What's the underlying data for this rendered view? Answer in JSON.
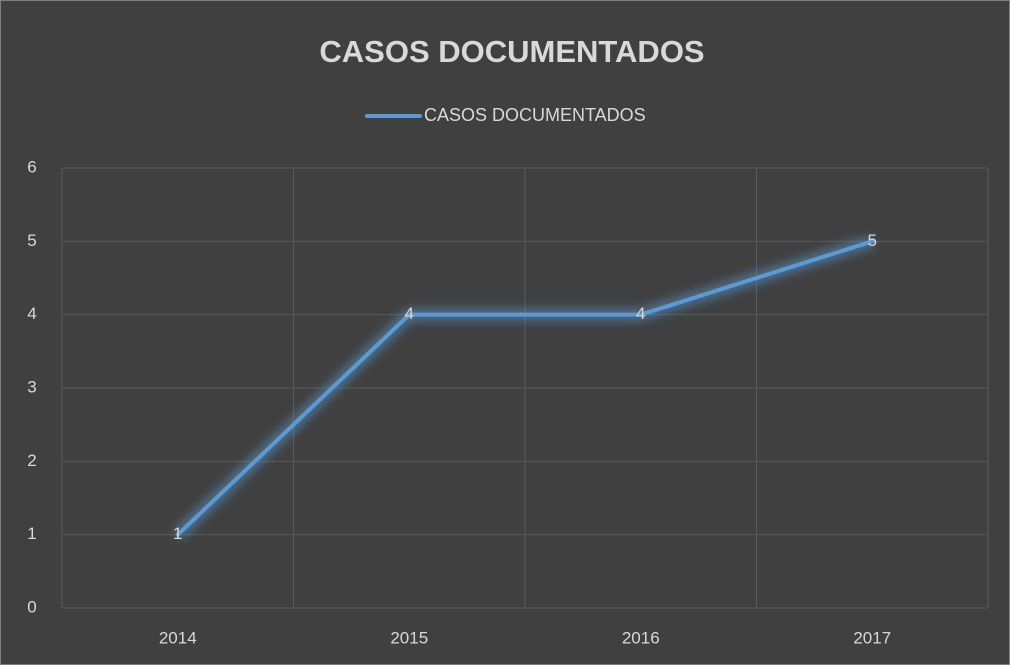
{
  "chart_data": {
    "type": "line",
    "title": "CASOS DOCUMENTADOS",
    "categories": [
      "2014",
      "2015",
      "2016",
      "2017"
    ],
    "series": [
      {
        "name": "CASOS DOCUMENTADOS",
        "color": "#5b9bd5",
        "values": [
          1,
          4,
          4,
          5
        ]
      }
    ],
    "ylim": [
      0,
      6
    ],
    "yticks": [
      0,
      1,
      2,
      3,
      4,
      5,
      6
    ],
    "grid": true,
    "legend": "top"
  }
}
